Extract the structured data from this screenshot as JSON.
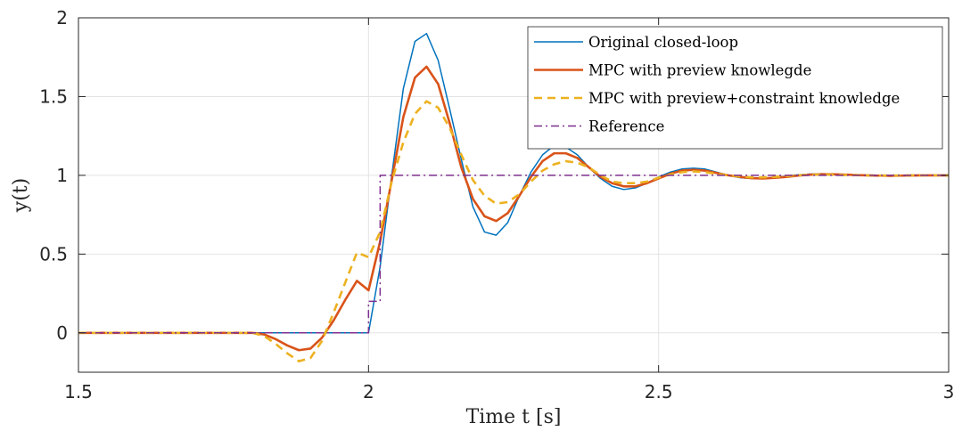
{
  "chart_data": {
    "type": "line",
    "title": "",
    "xlabel": "Time t [s]",
    "ylabel": "y(t)",
    "xlim": [
      1.5,
      3
    ],
    "ylim": [
      -0.25,
      2
    ],
    "xticks": [
      1.5,
      2,
      2.5,
      3
    ],
    "yticks": [
      0,
      0.5,
      1,
      1.5,
      2
    ],
    "xtick_labels": [
      "1.5",
      "2",
      "2.5",
      "3"
    ],
    "ytick_labels": [
      "0",
      "0.5",
      "1",
      "1.5",
      "2"
    ],
    "grid": true,
    "legend_position": "top-right",
    "series": [
      {
        "name": "Original closed-loop",
        "color": "#0072BD",
        "dash": "solid",
        "width": 1.5,
        "x": [
          1.5,
          1.9,
          1.98,
          2.0,
          2.02,
          2.04,
          2.06,
          2.08,
          2.1,
          2.12,
          2.14,
          2.16,
          2.18,
          2.2,
          2.22,
          2.24,
          2.26,
          2.28,
          2.3,
          2.32,
          2.34,
          2.36,
          2.38,
          2.4,
          2.42,
          2.44,
          2.46,
          2.48,
          2.5,
          2.52,
          2.54,
          2.56,
          2.58,
          2.6,
          2.62,
          2.64,
          2.66,
          2.68,
          2.7,
          2.72,
          2.74,
          2.76,
          2.78,
          2.8,
          2.82,
          2.84,
          2.86,
          2.88,
          2.9,
          2.95,
          3.0
        ],
        "y": [
          0,
          0,
          0,
          0,
          0.42,
          1.0,
          1.55,
          1.85,
          1.9,
          1.73,
          1.42,
          1.1,
          0.8,
          0.64,
          0.62,
          0.7,
          0.87,
          1.02,
          1.13,
          1.19,
          1.18,
          1.13,
          1.05,
          0.98,
          0.93,
          0.91,
          0.92,
          0.95,
          0.99,
          1.02,
          1.04,
          1.045,
          1.04,
          1.02,
          1.0,
          0.985,
          0.98,
          0.98,
          0.985,
          0.995,
          1.003,
          1.008,
          1.01,
          1.008,
          1.004,
          1.0,
          0.998,
          0.996,
          0.997,
          1.0,
          1.0
        ]
      },
      {
        "name": "MPC with preview knowlegde",
        "color": "#D95319",
        "dash": "solid",
        "width": 2.6,
        "x": [
          1.5,
          1.8,
          1.82,
          1.84,
          1.86,
          1.88,
          1.9,
          1.92,
          1.94,
          1.96,
          1.98,
          2.0,
          2.02,
          2.04,
          2.06,
          2.08,
          2.1,
          2.12,
          2.14,
          2.16,
          2.18,
          2.2,
          2.22,
          2.24,
          2.26,
          2.28,
          2.3,
          2.32,
          2.34,
          2.36,
          2.38,
          2.4,
          2.42,
          2.44,
          2.46,
          2.48,
          2.5,
          2.52,
          2.54,
          2.56,
          2.58,
          2.6,
          2.62,
          2.64,
          2.66,
          2.68,
          2.7,
          2.72,
          2.74,
          2.76,
          2.78,
          2.8,
          2.82,
          2.84,
          2.86,
          2.88,
          2.9,
          2.95,
          3.0
        ],
        "y": [
          0,
          0,
          -0.01,
          -0.04,
          -0.08,
          -0.11,
          -0.1,
          -0.03,
          0.08,
          0.21,
          0.33,
          0.27,
          0.58,
          0.97,
          1.37,
          1.62,
          1.69,
          1.58,
          1.33,
          1.05,
          0.85,
          0.74,
          0.71,
          0.76,
          0.87,
          0.99,
          1.09,
          1.14,
          1.14,
          1.11,
          1.05,
          0.99,
          0.95,
          0.93,
          0.93,
          0.95,
          0.98,
          1.01,
          1.03,
          1.035,
          1.03,
          1.015,
          1.0,
          0.99,
          0.982,
          0.98,
          0.984,
          0.99,
          0.998,
          1.004,
          1.007,
          1.007,
          1.005,
          1.002,
          1.0,
          0.998,
          0.997,
          1.0,
          1.0
        ]
      },
      {
        "name": "MPC with preview+constraint knowledge",
        "color": "#EDB120",
        "dash": "dashed",
        "width": 2.6,
        "x": [
          1.5,
          1.8,
          1.82,
          1.84,
          1.86,
          1.88,
          1.9,
          1.92,
          1.94,
          1.96,
          1.98,
          2.0,
          2.02,
          2.04,
          2.06,
          2.08,
          2.1,
          2.12,
          2.14,
          2.16,
          2.18,
          2.2,
          2.22,
          2.24,
          2.26,
          2.28,
          2.3,
          2.32,
          2.34,
          2.36,
          2.38,
          2.4,
          2.42,
          2.44,
          2.46,
          2.48,
          2.5,
          2.52,
          2.54,
          2.56,
          2.58,
          2.6,
          2.62,
          2.64,
          2.66,
          2.68,
          2.7,
          2.72,
          2.74,
          2.76,
          2.78,
          2.8,
          2.82,
          2.84,
          2.86,
          2.88,
          2.9,
          2.95,
          3.0
        ],
        "y": [
          0,
          0,
          -0.02,
          -0.07,
          -0.13,
          -0.18,
          -0.16,
          -0.05,
          0.13,
          0.32,
          0.51,
          0.48,
          0.64,
          0.96,
          1.21,
          1.39,
          1.47,
          1.43,
          1.3,
          1.13,
          0.97,
          0.87,
          0.82,
          0.83,
          0.88,
          0.96,
          1.03,
          1.07,
          1.09,
          1.08,
          1.05,
          1.0,
          0.96,
          0.95,
          0.95,
          0.96,
          0.985,
          1.005,
          1.02,
          1.025,
          1.02,
          1.01,
          1.0,
          0.992,
          0.987,
          0.987,
          0.99,
          0.995,
          1.0,
          1.004,
          1.005,
          1.004,
          1.002,
          1.001,
          1.0,
          0.999,
          0.999,
          1.0,
          1.0
        ]
      },
      {
        "name": "Reference",
        "color": "#7E2F8E",
        "dash": "dashdot",
        "width": 1.5,
        "x": [
          1.5,
          2.0,
          2.0,
          2.02,
          2.02,
          3.0
        ],
        "y": [
          0,
          0,
          0.2,
          0.2,
          1,
          1
        ]
      }
    ]
  }
}
